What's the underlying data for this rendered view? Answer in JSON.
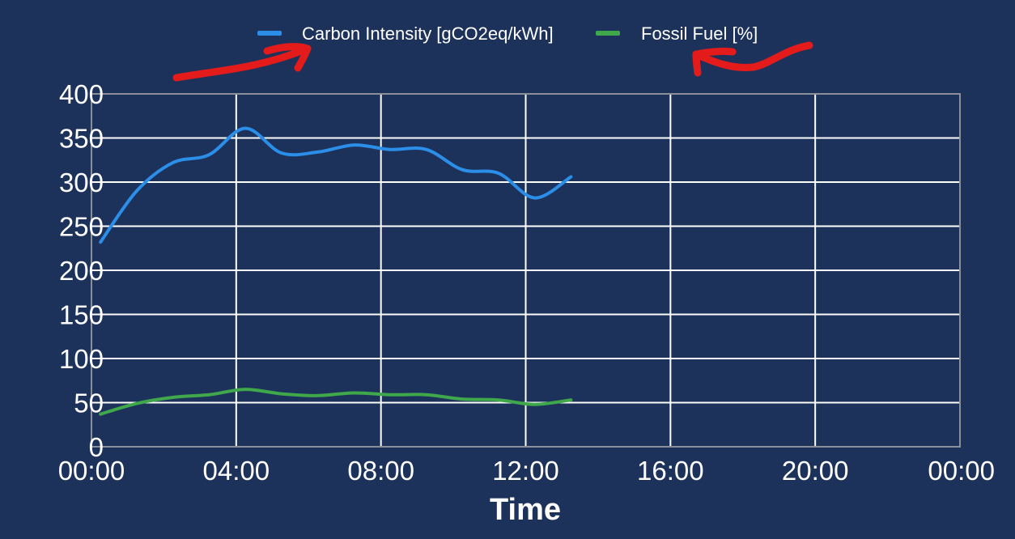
{
  "colors": {
    "background": "#1d325b",
    "grid": "#ffffff",
    "text": "#ffffff",
    "carbon": "#2b8ee8",
    "fossil": "#3fa84a",
    "annotation": "#e31b1b"
  },
  "chart_data": {
    "type": "line",
    "title": "",
    "xlabel": "Time",
    "ylabel": "",
    "x_ticks": [
      "00:00",
      "04:00",
      "08:00",
      "12:00",
      "16:00",
      "20:00",
      "00:00"
    ],
    "y_ticks": [
      "0",
      "50",
      "100",
      "150",
      "200",
      "250",
      "300",
      "350",
      "400"
    ],
    "xlim": [
      "00:00",
      "24:00"
    ],
    "ylim": [
      0,
      400
    ],
    "grid": true,
    "legend_position": "top-center",
    "series": [
      {
        "name": "Carbon Intensity [gCO2eq/kWh]",
        "color": "#2b8ee8",
        "points": [
          [
            "00:15",
            232
          ],
          [
            "01:15",
            290
          ],
          [
            "02:15",
            322
          ],
          [
            "03:15",
            331
          ],
          [
            "04:15",
            361
          ],
          [
            "05:15",
            333
          ],
          [
            "06:15",
            334
          ],
          [
            "07:15",
            342
          ],
          [
            "08:15",
            337
          ],
          [
            "09:15",
            337
          ],
          [
            "10:15",
            314
          ],
          [
            "11:15",
            310
          ],
          [
            "12:15",
            282
          ],
          [
            "13:15",
            306
          ]
        ]
      },
      {
        "name": "Fossil Fuel [%]",
        "color": "#3fa84a",
        "points": [
          [
            "00:15",
            37
          ],
          [
            "01:15",
            49
          ],
          [
            "02:15",
            56
          ],
          [
            "03:15",
            59
          ],
          [
            "04:15",
            65
          ],
          [
            "05:15",
            60
          ],
          [
            "06:15",
            58
          ],
          [
            "07:15",
            61
          ],
          [
            "08:15",
            59
          ],
          [
            "09:15",
            59
          ],
          [
            "10:15",
            54
          ],
          [
            "11:15",
            53
          ],
          [
            "12:15",
            48
          ],
          [
            "13:15",
            53
          ]
        ]
      }
    ]
  }
}
